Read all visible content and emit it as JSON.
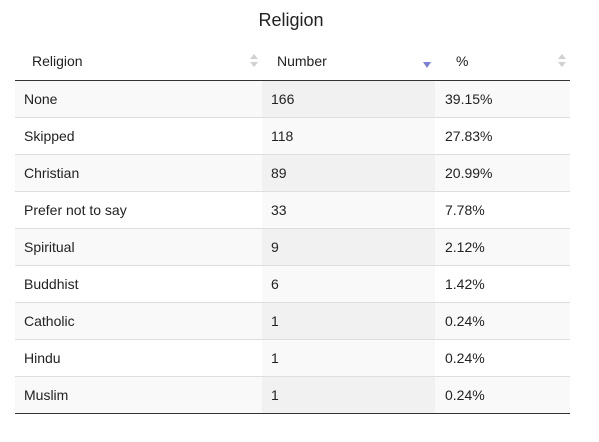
{
  "title": "Religion",
  "columns": [
    "Religion",
    "Number",
    "%"
  ],
  "sort": {
    "column": "Number",
    "direction": "descending",
    "accent": "#7b7fd6"
  },
  "rows": [
    {
      "religion": "None",
      "number": "166",
      "percent": "39.15%"
    },
    {
      "religion": "Skipped",
      "number": "118",
      "percent": "27.83%"
    },
    {
      "religion": "Christian",
      "number": "89",
      "percent": "20.99%"
    },
    {
      "religion": "Prefer not to say",
      "number": "33",
      "percent": "7.78%"
    },
    {
      "religion": "Spiritual",
      "number": "9",
      "percent": "2.12%"
    },
    {
      "religion": "Buddhist",
      "number": "6",
      "percent": "1.42%"
    },
    {
      "religion": "Catholic",
      "number": "1",
      "percent": "0.24%"
    },
    {
      "religion": "Hindu",
      "number": "1",
      "percent": "0.24%"
    },
    {
      "religion": "Muslim",
      "number": "1",
      "percent": "0.24%"
    }
  ]
}
